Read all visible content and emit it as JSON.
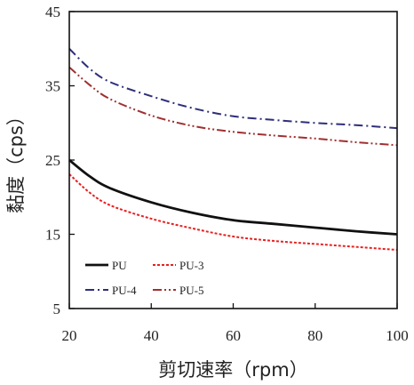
{
  "chart_data": {
    "type": "line",
    "title": "",
    "xlabel": "剪切速率（rpm）",
    "ylabel": "黏度（cps）",
    "xlim": [
      20,
      100
    ],
    "ylim": [
      5,
      45
    ],
    "xticks": [
      20,
      40,
      60,
      80,
      100
    ],
    "yticks": [
      5,
      15,
      25,
      35,
      45
    ],
    "grid": false,
    "legend_position": "bottom-left",
    "series": [
      {
        "name": "PU",
        "color": "#111111",
        "dash": "solid",
        "x": [
          20,
          25,
          30,
          40,
          50,
          60,
          70,
          80,
          90,
          100
        ],
        "y": [
          25.0,
          22.8,
          21.2,
          19.3,
          17.9,
          16.9,
          16.4,
          15.9,
          15.4,
          15.0
        ]
      },
      {
        "name": "PU-3",
        "color": "#e82020",
        "dash": "dotted",
        "x": [
          20,
          25,
          30,
          40,
          50,
          60,
          70,
          80,
          90,
          100
        ],
        "y": [
          23.1,
          20.6,
          18.9,
          17.1,
          15.8,
          14.7,
          14.1,
          13.7,
          13.3,
          12.9
        ]
      },
      {
        "name": "PU-4",
        "color": "#2e2e7a",
        "dash": "dash-dot",
        "x": [
          20,
          25,
          30,
          40,
          50,
          60,
          70,
          80,
          90,
          100
        ],
        "y": [
          40.0,
          37.3,
          35.5,
          33.6,
          32.0,
          30.9,
          30.4,
          30.0,
          29.7,
          29.3
        ]
      },
      {
        "name": "PU-5",
        "color": "#a03030",
        "dash": "dash-dot-dot",
        "x": [
          20,
          25,
          30,
          40,
          50,
          60,
          70,
          80,
          90,
          100
        ],
        "y": [
          37.5,
          35.1,
          33.2,
          31.0,
          29.6,
          28.8,
          28.3,
          27.9,
          27.4,
          27.0
        ]
      }
    ]
  }
}
